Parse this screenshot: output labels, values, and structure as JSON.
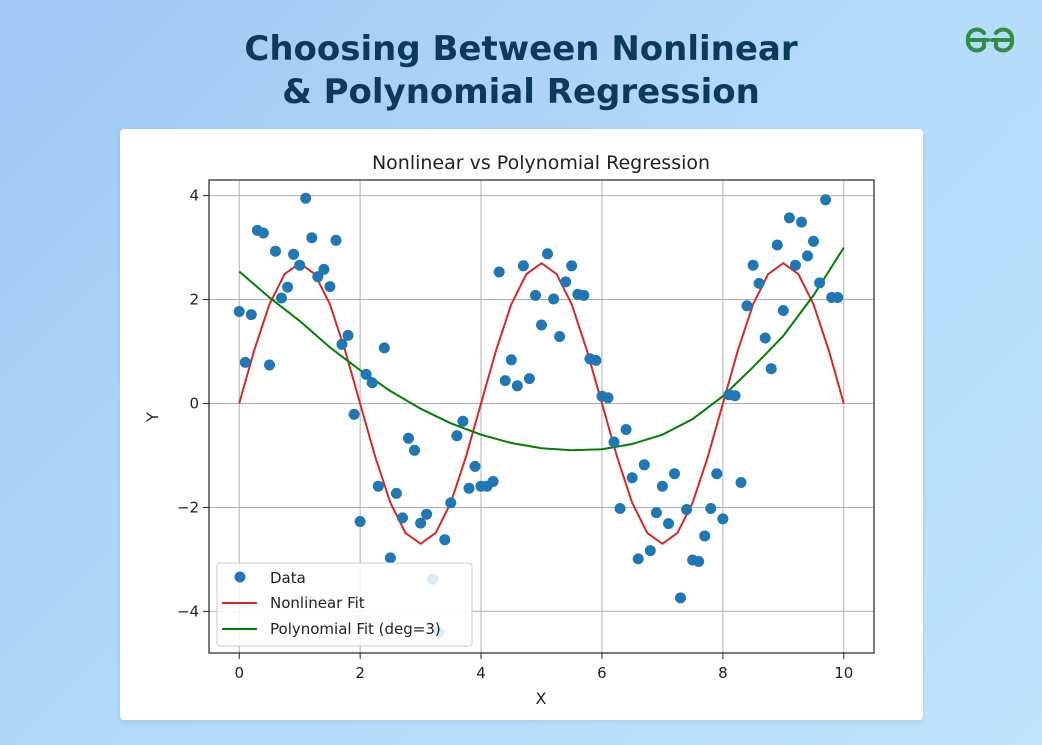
{
  "page": {
    "headline_line1": "Choosing Between Nonlinear",
    "headline_line2": "& Polynomial Regression"
  },
  "brand": {
    "logo_icon": "gfg-logo-icon",
    "color": "#2f8d46"
  },
  "chart_data": {
    "type": "scatter",
    "title": "Nonlinear vs Polynomial Regression",
    "xlabel": "X",
    "ylabel": "Y",
    "xlim": [
      -0.5,
      10.5
    ],
    "ylim": [
      -4.8,
      4.3
    ],
    "grid": true,
    "legend_position": "lower-left",
    "x_ticks": [
      0,
      2,
      4,
      6,
      8,
      10
    ],
    "y_ticks": [
      -4,
      -2,
      0,
      2,
      4
    ],
    "x_tick_labels": [
      "0",
      "2",
      "4",
      "6",
      "8",
      "10"
    ],
    "y_tick_labels": [
      "−4",
      "−2",
      "0",
      "2",
      "4"
    ],
    "series": [
      {
        "name": "Data",
        "kind": "scatter",
        "color": "#1f77b4",
        "points": [
          [
            0.0,
            1.77
          ],
          [
            0.1,
            0.79
          ],
          [
            0.2,
            1.71
          ],
          [
            0.3,
            3.33
          ],
          [
            0.4,
            3.28
          ],
          [
            0.5,
            0.74
          ],
          [
            0.6,
            2.93
          ],
          [
            0.7,
            2.03
          ],
          [
            0.8,
            2.24
          ],
          [
            0.9,
            2.87
          ],
          [
            1.0,
            2.66
          ],
          [
            1.1,
            3.95
          ],
          [
            1.2,
            3.19
          ],
          [
            1.3,
            2.44
          ],
          [
            1.4,
            2.58
          ],
          [
            1.5,
            2.25
          ],
          [
            1.6,
            3.14
          ],
          [
            1.7,
            1.14
          ],
          [
            1.8,
            1.31
          ],
          [
            1.9,
            -0.21
          ],
          [
            2.0,
            -2.27
          ],
          [
            2.1,
            0.56
          ],
          [
            2.2,
            0.4
          ],
          [
            2.3,
            -1.59
          ],
          [
            2.4,
            1.07
          ],
          [
            2.5,
            -2.97
          ],
          [
            2.6,
            -1.73
          ],
          [
            2.7,
            -2.2
          ],
          [
            2.8,
            -0.67
          ],
          [
            2.9,
            -0.9
          ],
          [
            3.0,
            -2.3
          ],
          [
            3.1,
            -2.13
          ],
          [
            3.2,
            -3.38
          ],
          [
            3.3,
            -4.4
          ],
          [
            3.4,
            -2.62
          ],
          [
            3.5,
            -1.91
          ],
          [
            3.6,
            -0.62
          ],
          [
            3.7,
            -0.34
          ],
          [
            3.8,
            -1.63
          ],
          [
            3.9,
            -1.21
          ],
          [
            4.0,
            -1.59
          ],
          [
            4.1,
            -1.59
          ],
          [
            4.2,
            -1.5
          ],
          [
            4.3,
            2.53
          ],
          [
            4.4,
            0.44
          ],
          [
            4.5,
            0.84
          ],
          [
            4.6,
            0.34
          ],
          [
            4.7,
            2.65
          ],
          [
            4.8,
            0.48
          ],
          [
            4.9,
            2.08
          ],
          [
            5.0,
            1.51
          ],
          [
            5.1,
            2.88
          ],
          [
            5.2,
            2.01
          ],
          [
            5.3,
            1.29
          ],
          [
            5.4,
            2.34
          ],
          [
            5.5,
            2.65
          ],
          [
            5.6,
            2.1
          ],
          [
            5.7,
            2.08
          ],
          [
            5.8,
            0.86
          ],
          [
            5.9,
            0.83
          ],
          [
            6.0,
            0.14
          ],
          [
            6.1,
            0.11
          ],
          [
            6.2,
            -0.74
          ],
          [
            6.3,
            -2.02
          ],
          [
            6.4,
            -0.5
          ],
          [
            6.5,
            -1.43
          ],
          [
            6.6,
            -2.99
          ],
          [
            6.7,
            -1.18
          ],
          [
            6.8,
            -2.83
          ],
          [
            6.9,
            -2.1
          ],
          [
            7.0,
            -1.59
          ],
          [
            7.1,
            -2.31
          ],
          [
            7.2,
            -1.35
          ],
          [
            7.3,
            -3.74
          ],
          [
            7.4,
            -2.04
          ],
          [
            7.5,
            -3.01
          ],
          [
            7.6,
            -3.04
          ],
          [
            7.7,
            -2.55
          ],
          [
            7.8,
            -2.02
          ],
          [
            7.9,
            -1.35
          ],
          [
            8.0,
            -2.22
          ],
          [
            8.1,
            0.17
          ],
          [
            8.2,
            0.15
          ],
          [
            8.3,
            -1.52
          ],
          [
            8.4,
            1.88
          ],
          [
            8.5,
            2.66
          ],
          [
            8.6,
            2.31
          ],
          [
            8.7,
            1.26
          ],
          [
            8.8,
            0.67
          ],
          [
            8.9,
            3.05
          ],
          [
            9.0,
            1.79
          ],
          [
            9.1,
            3.57
          ],
          [
            9.2,
            2.66
          ],
          [
            9.3,
            3.49
          ],
          [
            9.4,
            2.84
          ],
          [
            9.5,
            3.12
          ],
          [
            9.6,
            2.32
          ],
          [
            9.7,
            3.92
          ],
          [
            9.8,
            2.04
          ],
          [
            9.9,
            2.04
          ]
        ]
      },
      {
        "name": "Nonlinear Fit",
        "kind": "line",
        "color": "#d62728",
        "x": [
          0.0,
          0.25,
          0.5,
          0.75,
          1.0,
          1.25,
          1.5,
          1.75,
          2.0,
          2.25,
          2.5,
          2.75,
          3.0,
          3.25,
          3.5,
          3.75,
          4.0,
          4.25,
          4.5,
          4.75,
          5.0,
          5.25,
          5.5,
          5.75,
          6.0,
          6.25,
          6.5,
          6.75,
          7.0,
          7.25,
          7.5,
          7.75,
          8.0,
          8.25,
          8.5,
          8.75,
          9.0,
          9.25,
          9.5,
          9.75,
          10.0
        ],
        "y": [
          0.0,
          1.03,
          1.91,
          2.49,
          2.7,
          2.49,
          1.91,
          1.03,
          0.0,
          -1.03,
          -1.91,
          -2.49,
          -2.7,
          -2.49,
          -1.91,
          -1.03,
          0.0,
          1.03,
          1.91,
          2.49,
          2.7,
          2.49,
          1.91,
          1.03,
          0.0,
          -1.03,
          -1.91,
          -2.49,
          -2.7,
          -2.49,
          -1.91,
          -1.03,
          0.0,
          1.03,
          1.91,
          2.49,
          2.7,
          2.49,
          1.91,
          1.03,
          0.0
        ]
      },
      {
        "name": "Polynomial Fit (deg=3)",
        "kind": "line",
        "color": "#008000",
        "x": [
          0.0,
          0.5,
          1.0,
          1.5,
          2.0,
          2.5,
          3.0,
          3.5,
          4.0,
          4.5,
          5.0,
          5.5,
          6.0,
          6.5,
          7.0,
          7.5,
          8.0,
          8.5,
          9.0,
          9.5,
          10.0
        ],
        "y": [
          2.54,
          2.04,
          1.59,
          1.08,
          0.64,
          0.24,
          -0.1,
          -0.38,
          -0.6,
          -0.76,
          -0.86,
          -0.9,
          -0.88,
          -0.78,
          -0.6,
          -0.3,
          0.14,
          0.7,
          1.3,
          2.08,
          3.0
        ]
      }
    ]
  }
}
